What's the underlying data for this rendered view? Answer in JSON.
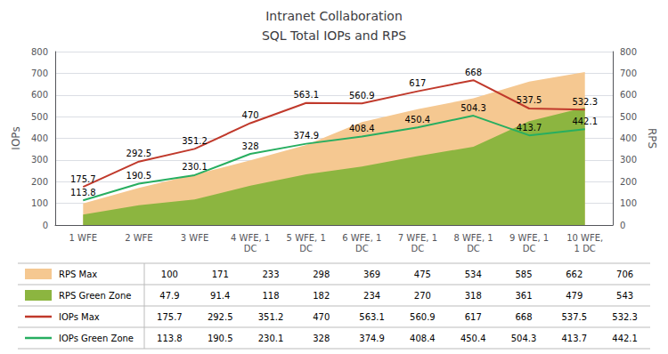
{
  "chart_data": {
    "type": "line",
    "title": "Intranet Collaboration",
    "subtitle": "SQL Total IOPs and RPS",
    "y_label": "IOPs",
    "y2_label": "RPS",
    "categories": [
      "1 WFE",
      "2 WFE",
      "3 WFE",
      "4 WFE, 1\nDC",
      "5 WFE, 1\nDC",
      "6 WFE, 1\nDC",
      "7 WFE, 1\nDC",
      "8 WFE, 1\nDC",
      "9 WFE, 1\nDC",
      "10 WFE,\n1 DC"
    ],
    "ylim": [
      0,
      800
    ],
    "yticks": [
      0,
      100,
      200,
      300,
      400,
      500,
      600,
      700,
      800
    ],
    "y2lim": [
      0,
      800
    ],
    "y2ticks": [
      0,
      100,
      200,
      300,
      400,
      500,
      600,
      700,
      800
    ],
    "grid": true,
    "series": [
      {
        "name": "RPS Max",
        "type": "area",
        "axis": "y2",
        "color": "#F5C891",
        "values": [
          100,
          171,
          233,
          298,
          369,
          475,
          534,
          585,
          662,
          706
        ]
      },
      {
        "name": "RPS Green Zone",
        "type": "area",
        "axis": "y2",
        "color": "#8CB540",
        "values": [
          47.9,
          91.4,
          118,
          182,
          234,
          270,
          318,
          361,
          479,
          543
        ]
      },
      {
        "name": "IOPs Max",
        "type": "line",
        "color": "#C0392B",
        "data_labels": true,
        "values": [
          175.7,
          292.5,
          351.2,
          470,
          563.1,
          560.9,
          617,
          668,
          537.5,
          532.3
        ]
      },
      {
        "name": "IOPs Green Zone",
        "type": "line",
        "color": "#27AE60",
        "data_labels": true,
        "values": [
          113.8,
          190.5,
          230.1,
          328,
          374.9,
          408.4,
          450.4,
          504.3,
          413.7,
          442.1
        ]
      }
    ]
  }
}
